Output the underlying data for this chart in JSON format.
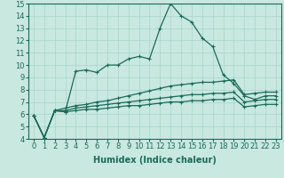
{
  "xlabel": "Humidex (Indice chaleur)",
  "background_color": "#c8e8e0",
  "line_color": "#1a6b5a",
  "xlim": [
    -0.5,
    23.5
  ],
  "ylim": [
    4,
    15
  ],
  "xticks": [
    0,
    1,
    2,
    3,
    4,
    5,
    6,
    7,
    8,
    9,
    10,
    11,
    12,
    13,
    14,
    15,
    16,
    17,
    18,
    19,
    20,
    21,
    22,
    23
  ],
  "yticks": [
    4,
    5,
    6,
    7,
    8,
    9,
    10,
    11,
    12,
    13,
    14,
    15
  ],
  "series": [
    [
      5.9,
      4.1,
      6.3,
      6.2,
      9.5,
      9.6,
      9.4,
      10.0,
      10.0,
      10.5,
      10.7,
      10.5,
      13.0,
      15.0,
      14.0,
      13.5,
      12.2,
      11.5,
      9.2,
      8.5,
      7.5,
      7.2,
      7.5,
      7.5
    ],
    [
      5.9,
      4.1,
      6.3,
      6.5,
      6.7,
      6.8,
      7.0,
      7.1,
      7.3,
      7.5,
      7.7,
      7.9,
      8.1,
      8.3,
      8.4,
      8.5,
      8.6,
      8.6,
      8.7,
      8.8,
      7.6,
      7.7,
      7.8,
      7.8
    ],
    [
      5.9,
      4.1,
      6.3,
      6.3,
      6.5,
      6.6,
      6.7,
      6.8,
      6.9,
      7.0,
      7.1,
      7.2,
      7.3,
      7.4,
      7.5,
      7.6,
      7.6,
      7.7,
      7.7,
      7.8,
      7.0,
      7.1,
      7.2,
      7.2
    ],
    [
      5.9,
      4.1,
      6.3,
      6.2,
      6.3,
      6.4,
      6.4,
      6.5,
      6.6,
      6.7,
      6.7,
      6.8,
      6.9,
      7.0,
      7.0,
      7.1,
      7.1,
      7.2,
      7.2,
      7.3,
      6.6,
      6.7,
      6.8,
      6.8
    ]
  ],
  "marker": "+",
  "markersize": 3,
  "linewidth": 0.9,
  "grid_color": "#a8d4cc",
  "xlabel_fontsize": 7,
  "tick_fontsize": 6
}
